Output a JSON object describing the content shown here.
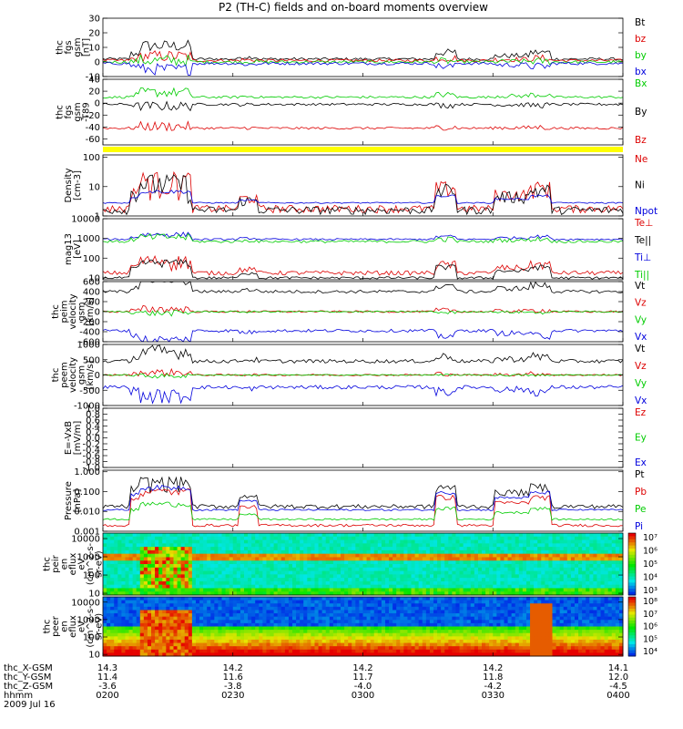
{
  "title": "P2 (TH-C) fields and on-board moments overview",
  "colors": {
    "black": "#000000",
    "red": "#dd0000",
    "green": "#00cc00",
    "blue": "#0000dd",
    "yellow": "#ffff00"
  },
  "chart_data": [
    {
      "id": "fgs",
      "type": "line",
      "ylabel": [
        "thc",
        "fgs",
        "gsm",
        "[nT]"
      ],
      "ylim": [
        -10,
        30
      ],
      "log": false,
      "ticks": [
        "30",
        "20",
        "10",
        "0",
        "-10"
      ],
      "tickvals": [
        30,
        20,
        10,
        0,
        -10
      ],
      "series": [
        {
          "name": "Bt",
          "color": "#000000",
          "base": 2,
          "burst": 9,
          "noise": 1
        },
        {
          "name": "bz",
          "color": "#dd0000",
          "base": 1,
          "burst": 3,
          "noise": 1
        },
        {
          "name": "by",
          "color": "#00cc00",
          "base": 0,
          "burst": 1,
          "noise": 1
        },
        {
          "name": "bx",
          "color": "#0000dd",
          "base": -1,
          "burst": -4,
          "noise": 1
        }
      ]
    },
    {
      "id": "fgs_dip",
      "type": "line",
      "ylabel": [
        "thc",
        "fgs",
        "gsm",
        "-T89"
      ],
      "ylim": [
        -70,
        40
      ],
      "log": false,
      "ticks": [
        "40",
        "20",
        "0",
        "-20",
        "-40",
        "-60"
      ],
      "tickvals": [
        40,
        20,
        0,
        -20,
        -40,
        -60
      ],
      "series": [
        {
          "name": "Bx",
          "color": "#00cc00",
          "base": 10,
          "burst": 8,
          "noise": 2
        },
        {
          "name": "By",
          "color": "#000000",
          "base": -2,
          "burst": -3,
          "noise": 2
        },
        {
          "name": "Bz",
          "color": "#dd0000",
          "base": -42,
          "burst": 3,
          "noise": 2
        }
      ]
    },
    {
      "id": "density",
      "type": "line",
      "ylabel": [
        "Density",
        "[cm-3]"
      ],
      "ylim": [
        1,
        120
      ],
      "log": true,
      "ticks": [
        "100",
        "10",
        "1"
      ],
      "tickvals": [
        100,
        10,
        1
      ],
      "series": [
        {
          "name": "Ne",
          "color": "#dd0000",
          "base": 1.8,
          "burst": 15,
          "noise": 0.3
        },
        {
          "name": "Ni",
          "color": "#000000",
          "base": 1.6,
          "burst": 12,
          "noise": 0.3
        },
        {
          "name": "Npot",
          "color": "#0000dd",
          "base": 2.8,
          "burst": 4,
          "noise": 0.05
        }
      ]
    },
    {
      "id": "temperature",
      "type": "line",
      "ylabel": [
        "mag13",
        "[eV]"
      ],
      "ylim": [
        8,
        10000
      ],
      "log": true,
      "ticks": [
        "10000",
        "1000",
        "100",
        "10"
      ],
      "tickvals": [
        10000,
        1000,
        100,
        10
      ],
      "series": [
        {
          "name": "Te⊥",
          "color": "#dd0000",
          "base": 18,
          "burst": 60,
          "noise": 0.25
        },
        {
          "name": "Te||",
          "color": "#000000",
          "base": 10,
          "burst": 50,
          "noise": 0.15
        },
        {
          "name": "Ti⊥",
          "color": "#0000dd",
          "base": 900,
          "burst": 700,
          "noise": 0.1
        },
        {
          "name": "Ti||",
          "color": "#00cc00",
          "base": 700,
          "burst": 500,
          "noise": 0.15
        }
      ]
    },
    {
      "id": "peim",
      "type": "line",
      "ylabel": [
        "thc",
        "peim",
        "velocity",
        "gsm",
        "[km/s]"
      ],
      "ylim": [
        -600,
        600
      ],
      "log": false,
      "ticks": [
        "600",
        "400",
        "200",
        "0",
        "-200",
        "-400",
        "-600"
      ],
      "tickvals": [
        600,
        400,
        200,
        0,
        -200,
        -400,
        -600
      ],
      "series": [
        {
          "name": "Vt",
          "color": "#000000",
          "base": 400,
          "burst": 250,
          "noise": 30
        },
        {
          "name": "Vz",
          "color": "#dd0000",
          "base": 0,
          "burst": 50,
          "noise": 20
        },
        {
          "name": "Vy",
          "color": "#00cc00",
          "base": 0,
          "burst": -30,
          "noise": 15
        },
        {
          "name": "Vx",
          "color": "#0000dd",
          "base": -380,
          "burst": -200,
          "noise": 30
        }
      ]
    },
    {
      "id": "peem",
      "type": "line",
      "ylabel": [
        "thc",
        "peem",
        "velocity",
        "gsm",
        "[km/s]"
      ],
      "ylim": [
        -1000,
        1000
      ],
      "log": false,
      "ticks": [
        "1000",
        "500",
        "0",
        "-500",
        "-1000"
      ],
      "tickvals": [
        1000,
        500,
        0,
        -500,
        -1000
      ],
      "series": [
        {
          "name": "Vt",
          "color": "#000000",
          "base": 450,
          "burst": 300,
          "noise": 60
        },
        {
          "name": "Vz",
          "color": "#dd0000",
          "base": 0,
          "burst": 80,
          "noise": 30
        },
        {
          "name": "Vy",
          "color": "#00cc00",
          "base": 0,
          "burst": -30,
          "noise": 20
        },
        {
          "name": "Vx",
          "color": "#0000dd",
          "base": -400,
          "burst": -300,
          "noise": 60
        }
      ]
    },
    {
      "id": "efield",
      "type": "line",
      "ylabel": [
        "E=-VxB",
        "[mV/m]"
      ],
      "ylim": [
        -1,
        1
      ],
      "log": false,
      "ticks": [
        "1.0",
        "0.8",
        "0.6",
        "0.4",
        "0.2",
        "0.0",
        "-0.2",
        "-0.4",
        "-0.6",
        "-0.8",
        "-1.0"
      ],
      "tickvals": [
        1,
        0.8,
        0.6,
        0.4,
        0.2,
        0,
        -0.2,
        -0.4,
        -0.6,
        -0.8,
        -1
      ],
      "series": [
        {
          "name": "Ez",
          "color": "#dd0000"
        },
        {
          "name": "Ey",
          "color": "#00cc00"
        },
        {
          "name": "Ex",
          "color": "#0000dd"
        }
      ]
    },
    {
      "id": "pressure",
      "type": "line",
      "ylabel": [
        "Pressure",
        "[nPa]"
      ],
      "ylim": [
        0.001,
        1.2
      ],
      "log": true,
      "ticks": [
        "1.000",
        "0.100",
        "0.010",
        "0.001"
      ],
      "tickvals": [
        1,
        0.1,
        0.01,
        0.001
      ],
      "series": [
        {
          "name": "Pt",
          "color": "#000000",
          "base": 0.018,
          "burst": 0.3,
          "noise": 0.25
        },
        {
          "name": "Pb",
          "color": "#dd0000",
          "base": 0.002,
          "burst": 0.1,
          "noise": 0.15
        },
        {
          "name": "Pe",
          "color": "#00cc00",
          "base": 0.004,
          "burst": 0.02,
          "noise": 0.1
        },
        {
          "name": "Pi",
          "color": "#0000dd",
          "base": 0.012,
          "burst": 0.15,
          "noise": 0.1
        }
      ]
    },
    {
      "id": "peir",
      "type": "heatmap",
      "ylabel": [
        "thc",
        "peir",
        "en",
        "eflux",
        "eV",
        "(cm^2-s-",
        "sr-eV)"
      ],
      "ticks": [
        "10000",
        "1000",
        "100",
        "10"
      ],
      "tickvals": [
        10000,
        1000,
        100,
        10
      ],
      "ylim": [
        8,
        20000
      ],
      "log": true,
      "colorbar": [
        "10⁷",
        "10⁶",
        "10⁵",
        "10⁴",
        "10³"
      ]
    },
    {
      "id": "peer",
      "type": "heatmap",
      "ylabel": [
        "thc",
        "peer",
        "en",
        "eflux",
        "eV",
        "(cm^2-s-",
        "sr-eV)"
      ],
      "ticks": [
        "10000",
        "1000",
        "100",
        "10"
      ],
      "tickvals": [
        10000,
        1000,
        100,
        10
      ],
      "ylim": [
        8,
        20000
      ],
      "log": true,
      "colorbar": [
        "10⁸",
        "10⁷",
        "10⁶",
        "10⁵",
        "10⁴"
      ]
    }
  ],
  "time_axis": {
    "row_labels": [
      "thc_X-GSM",
      "thc_Y-GSM",
      "thc_Z-GSM",
      "hhmm",
      "2009 Jul 16"
    ],
    "ticks": [
      {
        "time": "0200",
        "x": "14.3",
        "y": "11.4",
        "z": "-3.6"
      },
      {
        "time": "0230",
        "x": "14.2",
        "y": "11.6",
        "z": "-3.8"
      },
      {
        "time": "0300",
        "x": "14.2",
        "y": "11.7",
        "z": "-4.0"
      },
      {
        "time": "0330",
        "x": "14.2",
        "y": "11.8",
        "z": "-4.2"
      },
      {
        "time": "0400",
        "x": "14.1",
        "y": "12.0",
        "z": "-4.5"
      }
    ]
  }
}
